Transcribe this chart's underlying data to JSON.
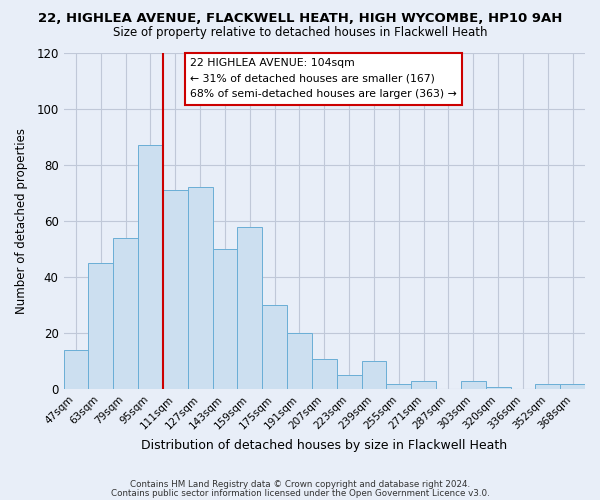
{
  "title": "22, HIGHLEA AVENUE, FLACKWELL HEATH, HIGH WYCOMBE, HP10 9AH",
  "subtitle": "Size of property relative to detached houses in Flackwell Heath",
  "xlabel": "Distribution of detached houses by size in Flackwell Heath",
  "ylabel": "Number of detached properties",
  "categories": [
    "47sqm",
    "63sqm",
    "79sqm",
    "95sqm",
    "111sqm",
    "127sqm",
    "143sqm",
    "159sqm",
    "175sqm",
    "191sqm",
    "207sqm",
    "223sqm",
    "239sqm",
    "255sqm",
    "271sqm",
    "287sqm",
    "303sqm",
    "320sqm",
    "336sqm",
    "352sqm",
    "368sqm"
  ],
  "values": [
    14,
    45,
    54,
    87,
    71,
    72,
    50,
    58,
    30,
    20,
    11,
    5,
    10,
    2,
    3,
    0,
    3,
    1,
    0,
    2,
    2
  ],
  "bar_color": "#ccdff0",
  "bar_edge_color": "#6aaed6",
  "vline_index": 4,
  "vline_color": "#cc0000",
  "ylim": [
    0,
    120
  ],
  "yticks": [
    0,
    20,
    40,
    60,
    80,
    100,
    120
  ],
  "annotation_box_text": "22 HIGHLEA AVENUE: 104sqm\n← 31% of detached houses are smaller (167)\n68% of semi-detached houses are larger (363) →",
  "annotation_box_color": "#ffffff",
  "annotation_box_edge_color": "#cc0000",
  "footer_line1": "Contains HM Land Registry data © Crown copyright and database right 2024.",
  "footer_line2": "Contains public sector information licensed under the Open Government Licence v3.0.",
  "background_color": "#e8eef8",
  "grid_color": "#c0c8d8",
  "title_fontsize": 9.5,
  "subtitle_fontsize": 8.5
}
